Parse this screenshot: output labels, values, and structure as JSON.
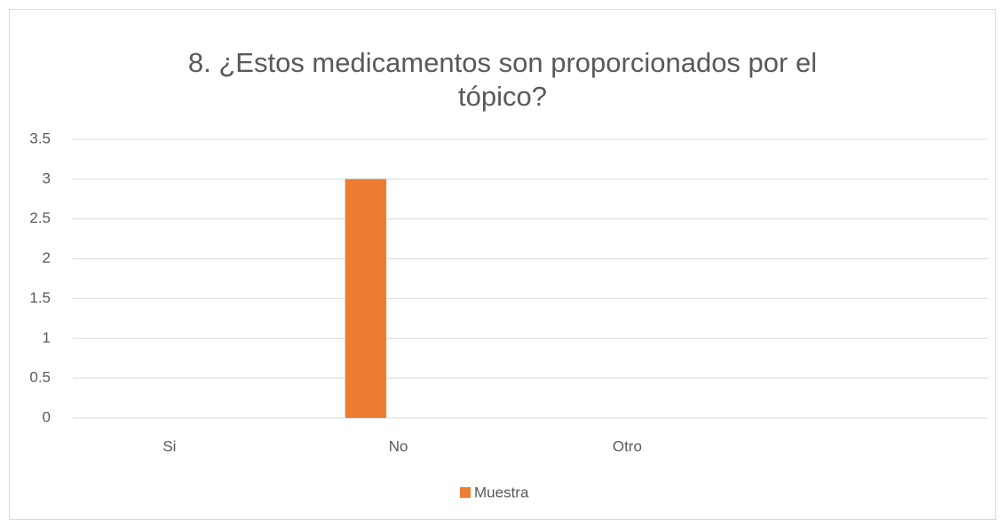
{
  "chart_data": {
    "type": "bar",
    "title": "8. ¿Estos medicamentos son proporcionados por el tópico?",
    "categories": [
      "Si",
      "No",
      "Otro",
      null
    ],
    "series": [
      {
        "name": "Muestra",
        "color": "#ed7d31",
        "values": [
          0,
          3,
          0,
          null
        ]
      }
    ],
    "ylim": [
      0,
      3.5
    ],
    "yticks": [
      0,
      0.5,
      1,
      1.5,
      2,
      2.5,
      3,
      3.5
    ],
    "grid": true,
    "legend": "bottom"
  }
}
